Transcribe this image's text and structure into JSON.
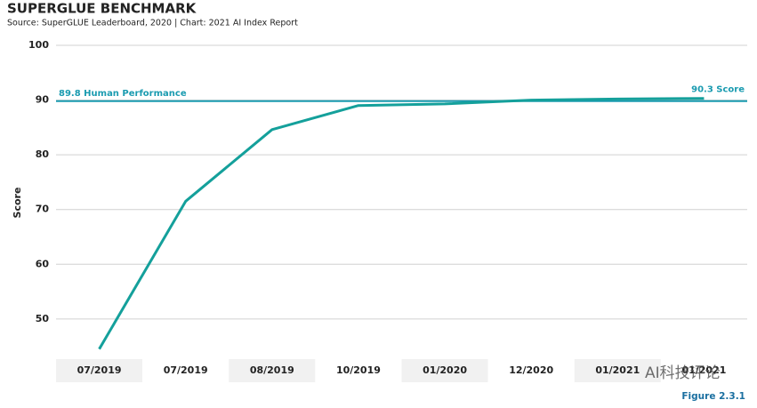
{
  "chart_data": {
    "type": "line",
    "title": "SUPERGLUE BENCHMARK",
    "subtitle": "Source: SuperGLUE Leaderboard, 2020 | Chart: 2021 AI Index Report",
    "y_label": "Score",
    "categories": [
      "07/2019",
      "07/2019",
      "08/2019",
      "10/2019",
      "01/2020",
      "12/2020",
      "01/2021",
      "01/2021"
    ],
    "series": [
      {
        "name": "SuperGLUE Score",
        "color": "#14a09b",
        "values": [
          44.5,
          71.5,
          84.6,
          89.0,
          89.3,
          90.0,
          90.2,
          90.3
        ]
      }
    ],
    "reference_line": {
      "value": 89.8,
      "label": "89.8 Human Performance",
      "color": "#1a9bb0"
    },
    "end_annotation": "90.3 Score",
    "ylim": [
      42.5,
      100
    ],
    "yticks": [
      50,
      60,
      70,
      80,
      90,
      100
    ],
    "grid": true,
    "figure_label": "Figure 2.3.1",
    "watermark": "AI科技评论"
  }
}
